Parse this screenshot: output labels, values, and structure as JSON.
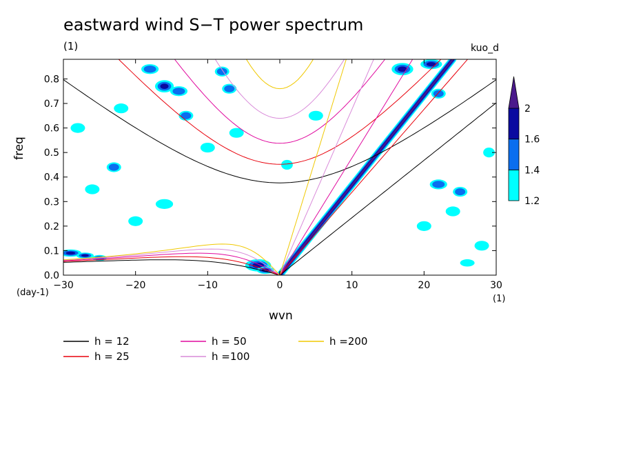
{
  "chart_data": {
    "type": "contour",
    "title": "eastward wind S−T power spectrum",
    "units_label": "(1)",
    "dataset": "kuo_d",
    "xlabel": "wvn",
    "ylabel": "freq",
    "x_units": "(1)",
    "y_units": "(day-1)",
    "xlim": [
      -30,
      30
    ],
    "ylim": [
      0,
      0.88
    ],
    "xticks": [
      -30,
      -20,
      -10,
      0,
      10,
      20,
      30
    ],
    "xtick_labels": [
      "−30",
      "−20",
      "−10",
      "0",
      "10",
      "20",
      "30"
    ],
    "yticks": [
      0,
      0.1,
      0.2,
      0.3,
      0.4,
      0.5,
      0.6,
      0.7,
      0.8
    ],
    "ytick_labels": [
      "0.0",
      "0.1",
      "0.2",
      "0.3",
      "0.4",
      "0.5",
      "0.6",
      "0.7",
      "0.8"
    ],
    "colorbar": {
      "levels": [
        1.2,
        1.4,
        1.6,
        2
      ],
      "labels": [
        "1.2",
        "1.4",
        "1.6",
        "2"
      ],
      "colors": [
        "#00ffff",
        "#0a6eef",
        "#0a0aa0",
        "#4b1a8c"
      ]
    },
    "legend": [
      {
        "label": "h = 12",
        "h": 12,
        "color": "#000000"
      },
      {
        "label": "h = 25",
        "h": 25,
        "color": "#e8000b"
      },
      {
        "label": "h = 50",
        "h": 50,
        "color": "#e0089e"
      },
      {
        "label": "h =100",
        "h": 100,
        "color": "#d98ad9"
      },
      {
        "label": "h =200",
        "h": 200,
        "color": "#f0c800"
      }
    ],
    "kelvin_ridge": {
      "k_start": 0,
      "f_start": 0.0,
      "k_end": 24,
      "f_end": 0.88
    },
    "contour_blobs": [
      {
        "k": -29,
        "f": 0.09,
        "rk": 1.5,
        "rf": 0.015,
        "level": 3
      },
      {
        "k": -27,
        "f": 0.08,
        "rk": 1.2,
        "rf": 0.012,
        "level": 3
      },
      {
        "k": -25,
        "f": 0.07,
        "rk": 1.0,
        "rf": 0.012,
        "level": 2
      },
      {
        "k": -23,
        "f": 0.44,
        "rk": 1.0,
        "rf": 0.02,
        "level": 2
      },
      {
        "k": -18,
        "f": 0.84,
        "rk": 1.2,
        "rf": 0.02,
        "level": 2
      },
      {
        "k": -16,
        "f": 0.77,
        "rk": 1.3,
        "rf": 0.025,
        "level": 3
      },
      {
        "k": -14,
        "f": 0.75,
        "rk": 1.2,
        "rf": 0.02,
        "level": 2
      },
      {
        "k": -13,
        "f": 0.65,
        "rk": 1.0,
        "rf": 0.02,
        "level": 2
      },
      {
        "k": -8,
        "f": 0.83,
        "rk": 1.0,
        "rf": 0.02,
        "level": 2
      },
      {
        "k": -7,
        "f": 0.76,
        "rk": 1.0,
        "rf": 0.02,
        "level": 2
      },
      {
        "k": -3,
        "f": 0.04,
        "rk": 1.8,
        "rf": 0.025,
        "level": 3
      },
      {
        "k": -2,
        "f": 0.02,
        "rk": 1.2,
        "rf": 0.015,
        "level": 4
      },
      {
        "k": -20,
        "f": 0.22,
        "rk": 1.0,
        "rf": 0.02,
        "level": 1
      },
      {
        "k": -16,
        "f": 0.29,
        "rk": 1.2,
        "rf": 0.02,
        "level": 1
      },
      {
        "k": -26,
        "f": 0.35,
        "rk": 1.0,
        "rf": 0.02,
        "level": 1
      },
      {
        "k": -10,
        "f": 0.52,
        "rk": 1.0,
        "rf": 0.02,
        "level": 1
      },
      {
        "k": -6,
        "f": 0.58,
        "rk": 1.0,
        "rf": 0.02,
        "level": 1
      },
      {
        "k": 5,
        "f": 0.65,
        "rk": 1.0,
        "rf": 0.02,
        "level": 1
      },
      {
        "k": 1,
        "f": 0.45,
        "rk": 0.8,
        "rf": 0.02,
        "level": 1
      },
      {
        "k": -28,
        "f": 0.6,
        "rk": 1.0,
        "rf": 0.02,
        "level": 1
      },
      {
        "k": -22,
        "f": 0.68,
        "rk": 1.0,
        "rf": 0.02,
        "level": 1
      },
      {
        "k": 17,
        "f": 0.84,
        "rk": 1.5,
        "rf": 0.025,
        "level": 3
      },
      {
        "k": 21,
        "f": 0.86,
        "rk": 1.5,
        "rf": 0.02,
        "level": 3
      },
      {
        "k": 22,
        "f": 0.74,
        "rk": 1.0,
        "rf": 0.02,
        "level": 2
      },
      {
        "k": 25,
        "f": 0.34,
        "rk": 1.0,
        "rf": 0.02,
        "level": 2
      },
      {
        "k": 22,
        "f": 0.37,
        "rk": 1.2,
        "rf": 0.02,
        "level": 2
      },
      {
        "k": 26,
        "f": 0.05,
        "rk": 1.0,
        "rf": 0.015,
        "level": 1
      },
      {
        "k": 28,
        "f": 0.12,
        "rk": 1.0,
        "rf": 0.02,
        "level": 1
      },
      {
        "k": 20,
        "f": 0.2,
        "rk": 1.0,
        "rf": 0.02,
        "level": 1
      },
      {
        "k": 24,
        "f": 0.26,
        "rk": 1.0,
        "rf": 0.02,
        "level": 1
      },
      {
        "k": 29,
        "f": 0.5,
        "rk": 0.8,
        "rf": 0.02,
        "level": 1
      }
    ]
  }
}
